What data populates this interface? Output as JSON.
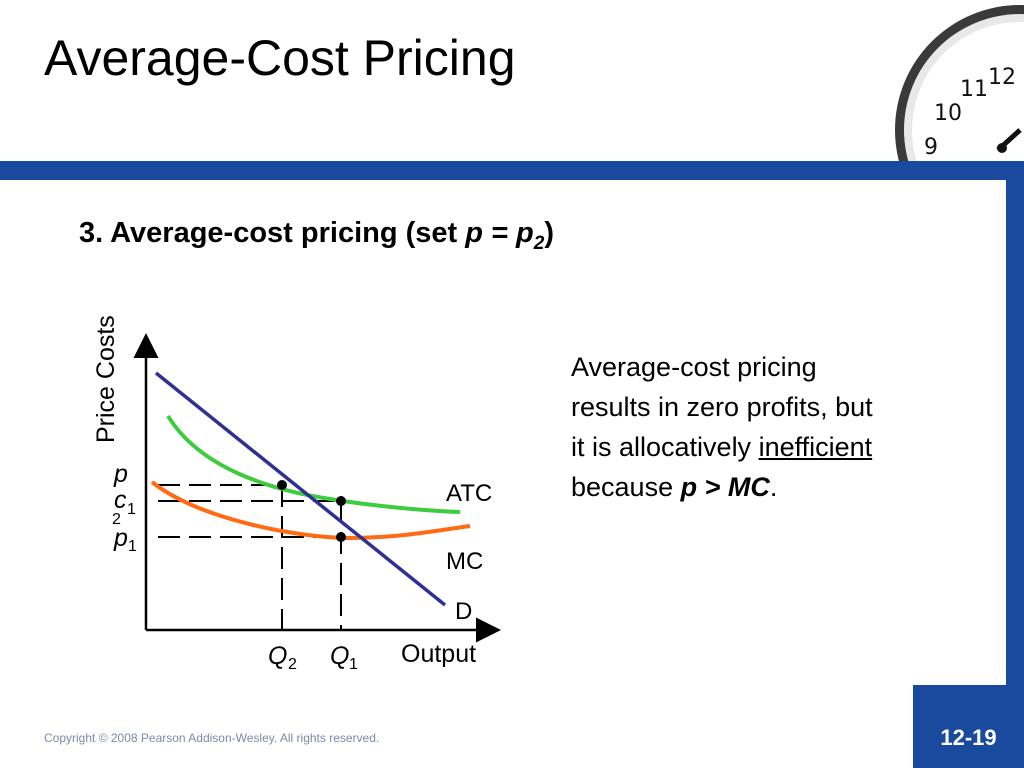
{
  "slide": {
    "title": "Average-Cost Pricing",
    "subtitle_prefix": "3. Average-cost pricing (set ",
    "subtitle_var_p": "p",
    "subtitle_equals": " = ",
    "subtitle_var_p2": "p",
    "subtitle_sub2": "2",
    "subtitle_suffix": ")"
  },
  "explanation": {
    "line1": "Average-cost pricing",
    "line2": "results in zero profits, but",
    "line3_prefix": "it is allocatively ",
    "line3_emph": "inefficient",
    "line4_prefix": "because ",
    "line4_expr": "p > MC",
    "line4_suffix": "."
  },
  "diagram": {
    "y_axis_label": "Price Costs",
    "x_axis_label": "Output",
    "curves": {
      "atc": {
        "label": "ATC",
        "color": "#3dcc3d"
      },
      "mc": {
        "label": "MC",
        "color": "#ff6a13"
      },
      "demand": {
        "label": "D",
        "color": "#2e3192"
      }
    },
    "y_ticks": {
      "p": "p",
      "c": "c",
      "c_sub": "1",
      "two": "2",
      "p1": "p",
      "p1_sub": "1"
    },
    "x_ticks": {
      "q2": "Q",
      "q2_sub": "2",
      "q1": "Q",
      "q1_sub": "1"
    }
  },
  "footer": {
    "copyright": "Copyright © 2008 Pearson Addison-Wesley. All rights reserved.",
    "slide_number": "12-19"
  }
}
